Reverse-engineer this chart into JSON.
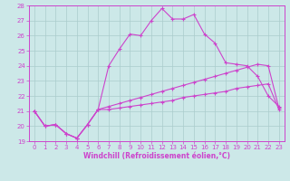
{
  "title": "",
  "xlabel": "Windchill (Refroidissement éolien,°C)",
  "ylabel": "",
  "background_color": "#cce8e8",
  "line_color": "#cc44cc",
  "grid_color": "#aacccc",
  "xlim": [
    -0.5,
    23.5
  ],
  "ylim": [
    19,
    28
  ],
  "xticks": [
    0,
    1,
    2,
    3,
    4,
    5,
    6,
    7,
    8,
    9,
    10,
    11,
    12,
    13,
    14,
    15,
    16,
    17,
    18,
    19,
    20,
    21,
    22,
    23
  ],
  "yticks": [
    19,
    20,
    21,
    22,
    23,
    24,
    25,
    26,
    27,
    28
  ],
  "series1": [
    [
      0,
      21.0
    ],
    [
      1,
      20.0
    ],
    [
      2,
      20.1
    ],
    [
      3,
      19.5
    ],
    [
      4,
      19.2
    ],
    [
      5,
      20.1
    ],
    [
      6,
      21.1
    ],
    [
      7,
      24.0
    ],
    [
      8,
      25.1
    ],
    [
      9,
      26.1
    ],
    [
      10,
      26.0
    ],
    [
      11,
      27.0
    ],
    [
      12,
      27.8
    ],
    [
      13,
      27.1
    ],
    [
      14,
      27.1
    ],
    [
      15,
      27.4
    ],
    [
      16,
      26.1
    ],
    [
      17,
      25.5
    ],
    [
      18,
      24.2
    ],
    [
      19,
      24.1
    ],
    [
      20,
      24.0
    ],
    [
      21,
      23.3
    ],
    [
      22,
      22.0
    ],
    [
      23,
      21.3
    ]
  ],
  "series2": [
    [
      0,
      21.0
    ],
    [
      1,
      20.0
    ],
    [
      2,
      20.1
    ],
    [
      3,
      19.5
    ],
    [
      4,
      19.2
    ],
    [
      5,
      20.1
    ],
    [
      6,
      21.1
    ],
    [
      7,
      21.3
    ],
    [
      8,
      21.5
    ],
    [
      9,
      21.7
    ],
    [
      10,
      21.9
    ],
    [
      11,
      22.1
    ],
    [
      12,
      22.3
    ],
    [
      13,
      22.5
    ],
    [
      14,
      22.7
    ],
    [
      15,
      22.9
    ],
    [
      16,
      23.1
    ],
    [
      17,
      23.3
    ],
    [
      18,
      23.5
    ],
    [
      19,
      23.7
    ],
    [
      20,
      23.9
    ],
    [
      21,
      24.1
    ],
    [
      22,
      24.0
    ],
    [
      23,
      21.2
    ]
  ],
  "series3": [
    [
      0,
      21.0
    ],
    [
      1,
      20.0
    ],
    [
      2,
      20.1
    ],
    [
      3,
      19.5
    ],
    [
      4,
      19.2
    ],
    [
      5,
      20.1
    ],
    [
      6,
      21.1
    ],
    [
      7,
      21.1
    ],
    [
      8,
      21.2
    ],
    [
      9,
      21.3
    ],
    [
      10,
      21.4
    ],
    [
      11,
      21.5
    ],
    [
      12,
      21.6
    ],
    [
      13,
      21.7
    ],
    [
      14,
      21.9
    ],
    [
      15,
      22.0
    ],
    [
      16,
      22.1
    ],
    [
      17,
      22.2
    ],
    [
      18,
      22.3
    ],
    [
      19,
      22.5
    ],
    [
      20,
      22.6
    ],
    [
      21,
      22.7
    ],
    [
      22,
      22.8
    ],
    [
      23,
      21.1
    ]
  ]
}
